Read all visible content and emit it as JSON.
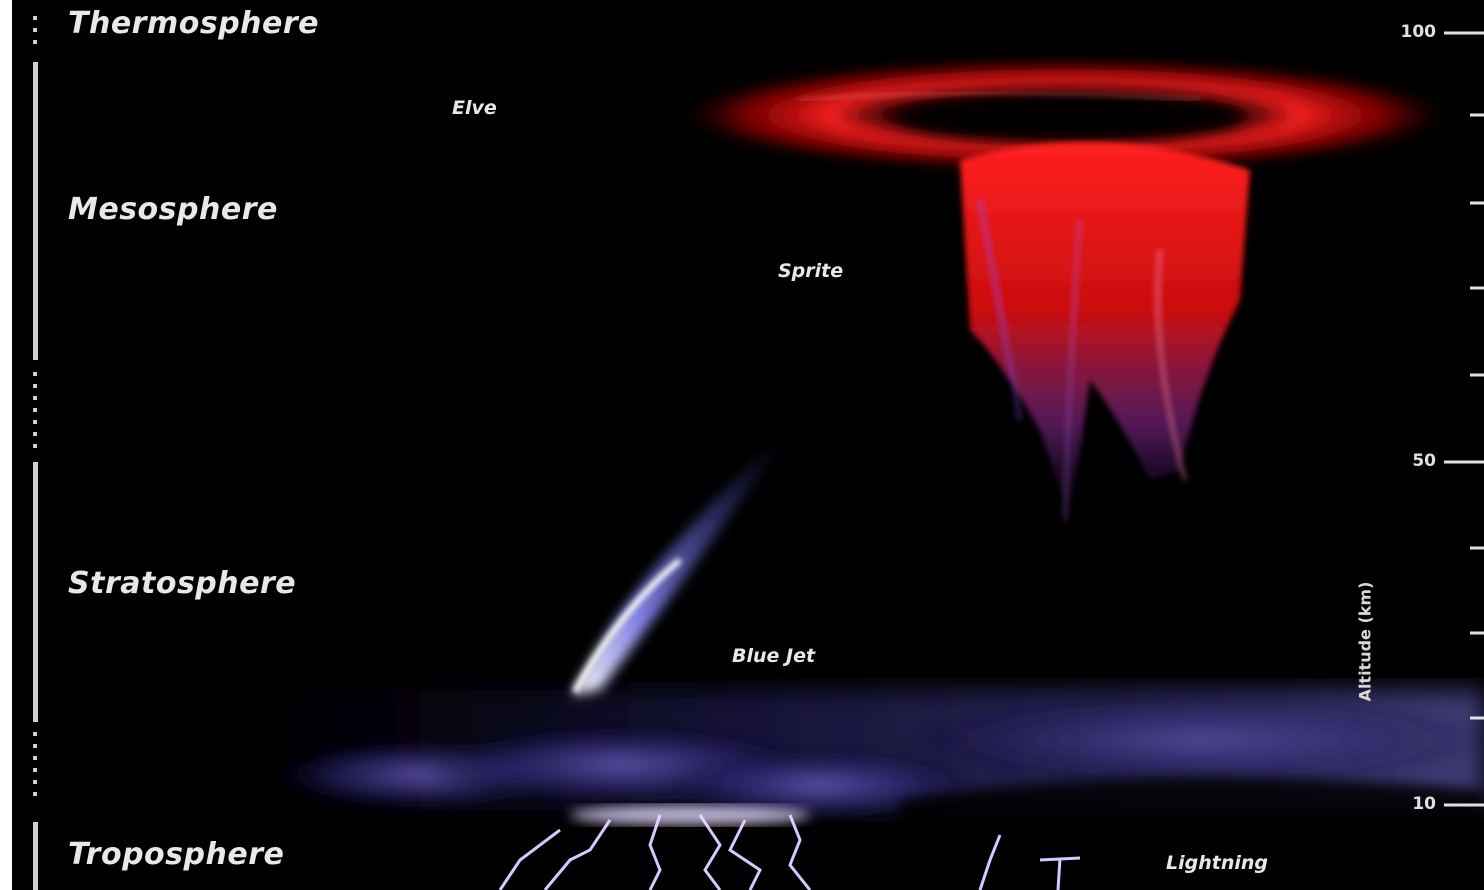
{
  "layers": [
    {
      "id": "thermosphere",
      "label": "Thermosphere"
    },
    {
      "id": "mesosphere",
      "label": "Mesosphere"
    },
    {
      "id": "stratosphere",
      "label": "Stratosphere"
    },
    {
      "id": "troposphere",
      "label": "Troposphere"
    }
  ],
  "events": [
    {
      "id": "elve",
      "label": "Elve"
    },
    {
      "id": "sprite",
      "label": "Sprite"
    },
    {
      "id": "blue-jet",
      "label": "Blue Jet"
    },
    {
      "id": "lightning",
      "label": "Lightning"
    }
  ],
  "axis": {
    "title": "Altitude (km)",
    "ticks": [
      "100",
      "50",
      "10"
    ]
  },
  "colors": {
    "background": "#000000",
    "elve": "#ff2020",
    "sprite": "#ff1a1a",
    "blue_jet": "#8f8fff",
    "lightning": "#c9b8ff",
    "text": "#e8e8e8"
  }
}
